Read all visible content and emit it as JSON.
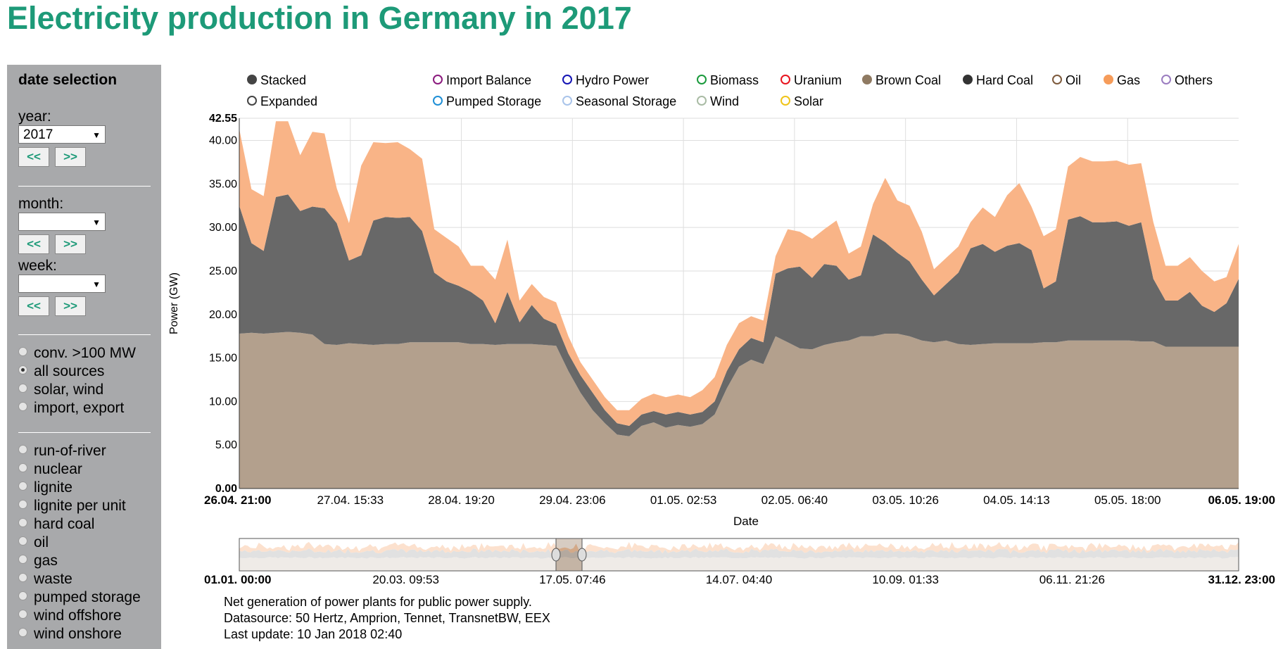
{
  "page": {
    "title": "Electricity production in Germany in 2017"
  },
  "sidebar": {
    "title": "date selection",
    "year_label": "year:",
    "year_value": "2017",
    "month_label": "month:",
    "month_value": "",
    "week_label": "week:",
    "week_value": "",
    "prev_label": "<<",
    "next_label": ">>",
    "source_group": [
      {
        "label": "conv. >100 MW",
        "checked": false
      },
      {
        "label": "all sources",
        "checked": true
      },
      {
        "label": "solar, wind",
        "checked": false
      },
      {
        "label": "import, export",
        "checked": false
      }
    ],
    "type_group": [
      {
        "label": "run-of-river",
        "checked": false
      },
      {
        "label": "nuclear",
        "checked": false
      },
      {
        "label": "lignite",
        "checked": false
      },
      {
        "label": "lignite per unit",
        "checked": false
      },
      {
        "label": "hard coal",
        "checked": false
      },
      {
        "label": "oil",
        "checked": false
      },
      {
        "label": "gas",
        "checked": false
      },
      {
        "label": "waste",
        "checked": false
      },
      {
        "label": "pumped storage",
        "checked": false
      },
      {
        "label": "wind offshore",
        "checked": false
      },
      {
        "label": "wind onshore",
        "checked": false
      }
    ]
  },
  "legend": {
    "mode_items": [
      {
        "label": "Stacked",
        "color": "#444444",
        "filled": true
      },
      {
        "label": "Expanded",
        "color": "#444444",
        "filled": false
      }
    ],
    "series_items": [
      {
        "label": "Import Balance",
        "color": "#8b1a7e",
        "filled": false
      },
      {
        "label": "Pumped Storage",
        "color": "#1f8fd6",
        "filled": false
      },
      {
        "label": "Hydro Power",
        "color": "#1414b4",
        "filled": false
      },
      {
        "label": "Seasonal Storage",
        "color": "#a9c4ea",
        "filled": false
      },
      {
        "label": "Biomass",
        "color": "#1a9a3c",
        "filled": false
      },
      {
        "label": "Wind",
        "color": "#a9bba4",
        "filled": false
      },
      {
        "label": "Uranium",
        "color": "#e8141e",
        "filled": false
      },
      {
        "label": "Solar",
        "color": "#f0c419",
        "filled": false
      },
      {
        "label": "Brown Coal",
        "color": "#8f7a62",
        "filled": true
      },
      {
        "label": "Hard Coal",
        "color": "#333333",
        "filled": true
      },
      {
        "label": "Oil",
        "color": "#7d5a3c",
        "filled": false
      },
      {
        "label": "Gas",
        "color": "#f69c5a",
        "filled": true
      },
      {
        "label": "Others",
        "color": "#9a7cc0",
        "filled": false
      }
    ]
  },
  "chart_data": {
    "type": "area",
    "stacked": true,
    "xlabel": "Date",
    "ylabel": "Power (GW)",
    "ylim": [
      0,
      42.55
    ],
    "y_ticks": [
      "0.00",
      "5.00",
      "10.00",
      "15.00",
      "20.00",
      "25.00",
      "30.00",
      "35.00",
      "40.00",
      "42.55"
    ],
    "x_ticks": [
      {
        "label": "26.04. 21:00",
        "bold": true
      },
      {
        "label": "27.04. 15:33",
        "bold": false
      },
      {
        "label": "28.04. 19:20",
        "bold": false
      },
      {
        "label": "29.04. 23:06",
        "bold": false
      },
      {
        "label": "01.05. 02:53",
        "bold": false
      },
      {
        "label": "02.05. 06:40",
        "bold": false
      },
      {
        "label": "03.05. 10:26",
        "bold": false
      },
      {
        "label": "04.05. 14:13",
        "bold": false
      },
      {
        "label": "05.05. 18:00",
        "bold": false
      },
      {
        "label": "06.05. 19:00",
        "bold": true
      }
    ],
    "grid": true,
    "x": [
      "26.04. 21:00",
      "27.04. 00:00",
      "27.04. 03:00",
      "27.04. 06:00",
      "27.04. 08:00",
      "27.04. 10:00",
      "27.04. 12:00",
      "27.04. 15:00",
      "27.04. 17:00",
      "27.04. 20:00",
      "27.04. 22:00",
      "28.04. 01:00",
      "28.04. 03:00",
      "28.04. 06:00",
      "28.04. 08:00",
      "28.04. 10:00",
      "28.04. 13:00",
      "28.04. 16:00",
      "28.04. 19:00",
      "28.04. 21:00",
      "29.04. 00:00",
      "29.04. 03:00",
      "29.04. 06:00",
      "29.04. 09:00",
      "29.04. 12:00",
      "29.04. 15:00",
      "29.04. 18:00",
      "29.04. 21:00",
      "30.04. 00:00",
      "30.04. 03:00",
      "30.04. 06:00",
      "30.04. 09:00",
      "30.04. 12:00",
      "30.04. 15:00",
      "30.04. 18:00",
      "30.04. 21:00",
      "01.05. 00:00",
      "01.05. 03:00",
      "01.05. 06:00",
      "01.05. 09:00",
      "01.05. 12:00",
      "01.05. 15:00",
      "01.05. 18:00",
      "01.05. 21:00",
      "02.05. 00:00",
      "02.05. 03:00",
      "02.05. 06:00",
      "02.05. 09:00",
      "02.05. 12:00",
      "02.05. 15:00",
      "02.05. 18:00",
      "02.05. 21:00",
      "03.05. 00:00",
      "03.05. 03:00",
      "03.05. 06:00",
      "03.05. 09:00",
      "03.05. 12:00",
      "03.05. 15:00",
      "03.05. 18:00",
      "03.05. 21:00",
      "04.05. 00:00",
      "04.05. 03:00",
      "04.05. 06:00",
      "04.05. 09:00",
      "04.05. 12:00",
      "04.05. 15:00",
      "04.05. 18:00",
      "04.05. 21:00",
      "05.05. 00:00",
      "05.05. 03:00",
      "05.05. 06:00",
      "05.05. 09:00",
      "05.05. 12:00",
      "05.05. 15:00",
      "05.05. 18:00",
      "05.05. 21:00",
      "06.05. 00:00",
      "06.05. 03:00",
      "06.05. 06:00",
      "06.05. 09:00",
      "06.05. 12:00",
      "06.05. 15:00",
      "06.05. 19:00"
    ],
    "series": [
      {
        "name": "Brown Coal",
        "color": "#b3a08d",
        "values": [
          17.8,
          17.9,
          17.8,
          17.9,
          18.0,
          17.9,
          17.7,
          16.6,
          16.5,
          16.7,
          16.6,
          16.5,
          16.6,
          16.6,
          16.8,
          16.8,
          16.8,
          16.8,
          16.8,
          16.6,
          16.6,
          16.5,
          16.6,
          16.6,
          16.6,
          16.5,
          16.4,
          13.5,
          11.0,
          9.0,
          7.5,
          6.2,
          6.0,
          7.2,
          7.6,
          7.0,
          7.3,
          7.1,
          7.4,
          8.5,
          11.5,
          14.0,
          14.8,
          14.3,
          17.5,
          16.8,
          16.1,
          16.0,
          16.5,
          16.8,
          17.0,
          17.5,
          17.5,
          17.8,
          17.8,
          17.5,
          17.0,
          16.8,
          17.0,
          16.6,
          16.5,
          16.6,
          16.7,
          16.7,
          16.7,
          16.7,
          16.8,
          16.8,
          17.0,
          17.0,
          17.0,
          17.0,
          17.0,
          17.0,
          16.9,
          16.9,
          16.3,
          16.3,
          16.3,
          16.3,
          16.3,
          16.3,
          16.3
        ]
      },
      {
        "name": "Hard Coal",
        "color": "#686868",
        "values": [
          14.7,
          10.3,
          9.5,
          15.6,
          15.8,
          14.0,
          14.7,
          15.6,
          14.0,
          9.5,
          10.2,
          14.3,
          14.6,
          14.5,
          14.4,
          12.8,
          8.0,
          7.0,
          6.5,
          6.0,
          5.0,
          2.5,
          6.0,
          2.5,
          4.5,
          3.0,
          2.5,
          2.0,
          2.0,
          2.0,
          1.5,
          1.3,
          1.2,
          1.3,
          1.3,
          1.5,
          1.5,
          1.4,
          1.4,
          1.5,
          2.0,
          2.0,
          2.5,
          2.5,
          7.2,
          8.5,
          9.4,
          8.2,
          9.3,
          8.8,
          7.0,
          7.0,
          11.7,
          10.5,
          9.3,
          8.6,
          7.0,
          5.4,
          6.5,
          8.2,
          11.1,
          11.5,
          10.5,
          11.2,
          11.5,
          10.7,
          6.2,
          7.0,
          13.9,
          14.3,
          13.6,
          13.6,
          13.7,
          13.2,
          13.7,
          7.2,
          5.3,
          5.3,
          6.3,
          4.7,
          4.0,
          5.0,
          7.8
        ]
      },
      {
        "name": "Gas",
        "color": "#f9b487",
        "values": [
          8.8,
          6.2,
          6.3,
          8.7,
          8.4,
          6.4,
          8.6,
          8.6,
          4.0,
          4.3,
          10.3,
          9.0,
          8.5,
          8.7,
          7.8,
          8.3,
          5.0,
          5.0,
          4.5,
          3.0,
          4.0,
          5.0,
          6.0,
          2.5,
          2.4,
          2.5,
          2.5,
          2.0,
          1.5,
          1.5,
          1.5,
          1.5,
          1.8,
          1.8,
          2.0,
          2.0,
          2.0,
          2.0,
          2.5,
          2.8,
          3.0,
          3.0,
          2.5,
          2.5,
          2.0,
          4.5,
          4.0,
          4.5,
          4.0,
          5.2,
          3.0,
          3.3,
          3.5,
          7.4,
          6.0,
          6.4,
          5.5,
          3.0,
          3.0,
          3.0,
          3.0,
          4.2,
          4.0,
          5.8,
          6.9,
          5.0,
          6.0,
          6.0,
          6.1,
          6.8,
          7.0,
          7.0,
          7.0,
          7.0,
          6.8,
          6.5,
          4.0,
          4.0,
          4.0,
          4.0,
          3.5,
          3.0,
          4.0
        ]
      }
    ],
    "overview": {
      "x_ticks": [
        {
          "label": "01.01. 00:00",
          "bold": true
        },
        {
          "label": "20.03. 09:53",
          "bold": false
        },
        {
          "label": "17.05. 07:46",
          "bold": false
        },
        {
          "label": "14.07. 04:40",
          "bold": false
        },
        {
          "label": "10.09. 01:33",
          "bold": false
        },
        {
          "label": "06.11. 21:26",
          "bold": false
        },
        {
          "label": "31.12. 23:00",
          "bold": true
        }
      ],
      "selection": [
        "26.04. 21:00",
        "06.05. 19:00"
      ]
    }
  },
  "footer": {
    "line1": "Net generation of power plants for public power supply.",
    "line2": "Datasource: 50 Hertz, Amprion, Tennet, TransnetBW, EEX",
    "line3": "Last update: 10 Jan 2018 02:40"
  }
}
